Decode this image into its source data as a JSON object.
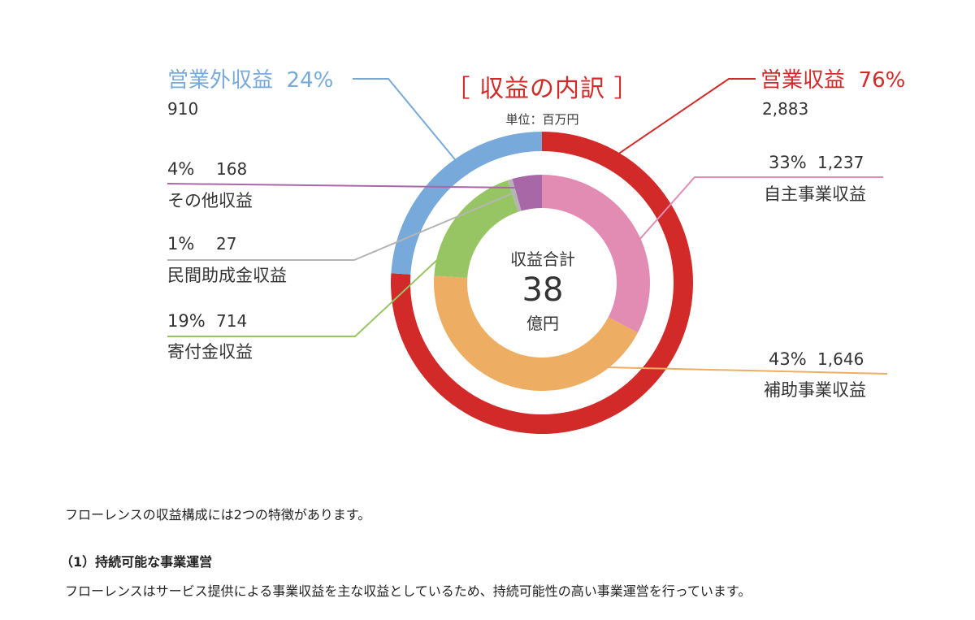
{
  "chart_data": {
    "type": "pie",
    "title": "［ 収益の内訳 ］",
    "unit": "単位：百万円",
    "center": {
      "label": "収益合計",
      "value": "38",
      "unit": "億円"
    },
    "outer_ring": [
      {
        "name": "営業外収益",
        "percent_label": "24%",
        "value": 910,
        "value_label": "910",
        "color": "#77aadb"
      },
      {
        "name": "営業収益",
        "percent_label": "76%",
        "value": 2883,
        "value_label": "2,883",
        "color": "#d22a28"
      }
    ],
    "inner_ring": [
      {
        "name": "自主事業収益",
        "percent_label": "33%",
        "value": 1237,
        "value_label": "1,237",
        "color": "#e28cb4"
      },
      {
        "name": "補助事業収益",
        "percent_label": "43%",
        "value": 1646,
        "value_label": "1,646",
        "color": "#edad62"
      },
      {
        "name": "寄付金収益",
        "percent_label": "19%",
        "value": 714,
        "value_label": "714",
        "color": "#98c563"
      },
      {
        "name": "民間助成金収益",
        "percent_label": "1%",
        "value": 27,
        "value_label": "27",
        "color": "#b4b4b4"
      },
      {
        "name": "その他収益",
        "percent_label": "4%",
        "value": 168,
        "value_label": "168",
        "color": "#a868a8"
      }
    ]
  },
  "text": {
    "intro": "フローレンスの収益構成には2つの特徴があります。",
    "heading1": "（1）持続可能な事業運営",
    "para1": "フローレンスはサービス提供による事業収益を主な収益としているため、持続可能性の高い事業運営を行っています。"
  }
}
